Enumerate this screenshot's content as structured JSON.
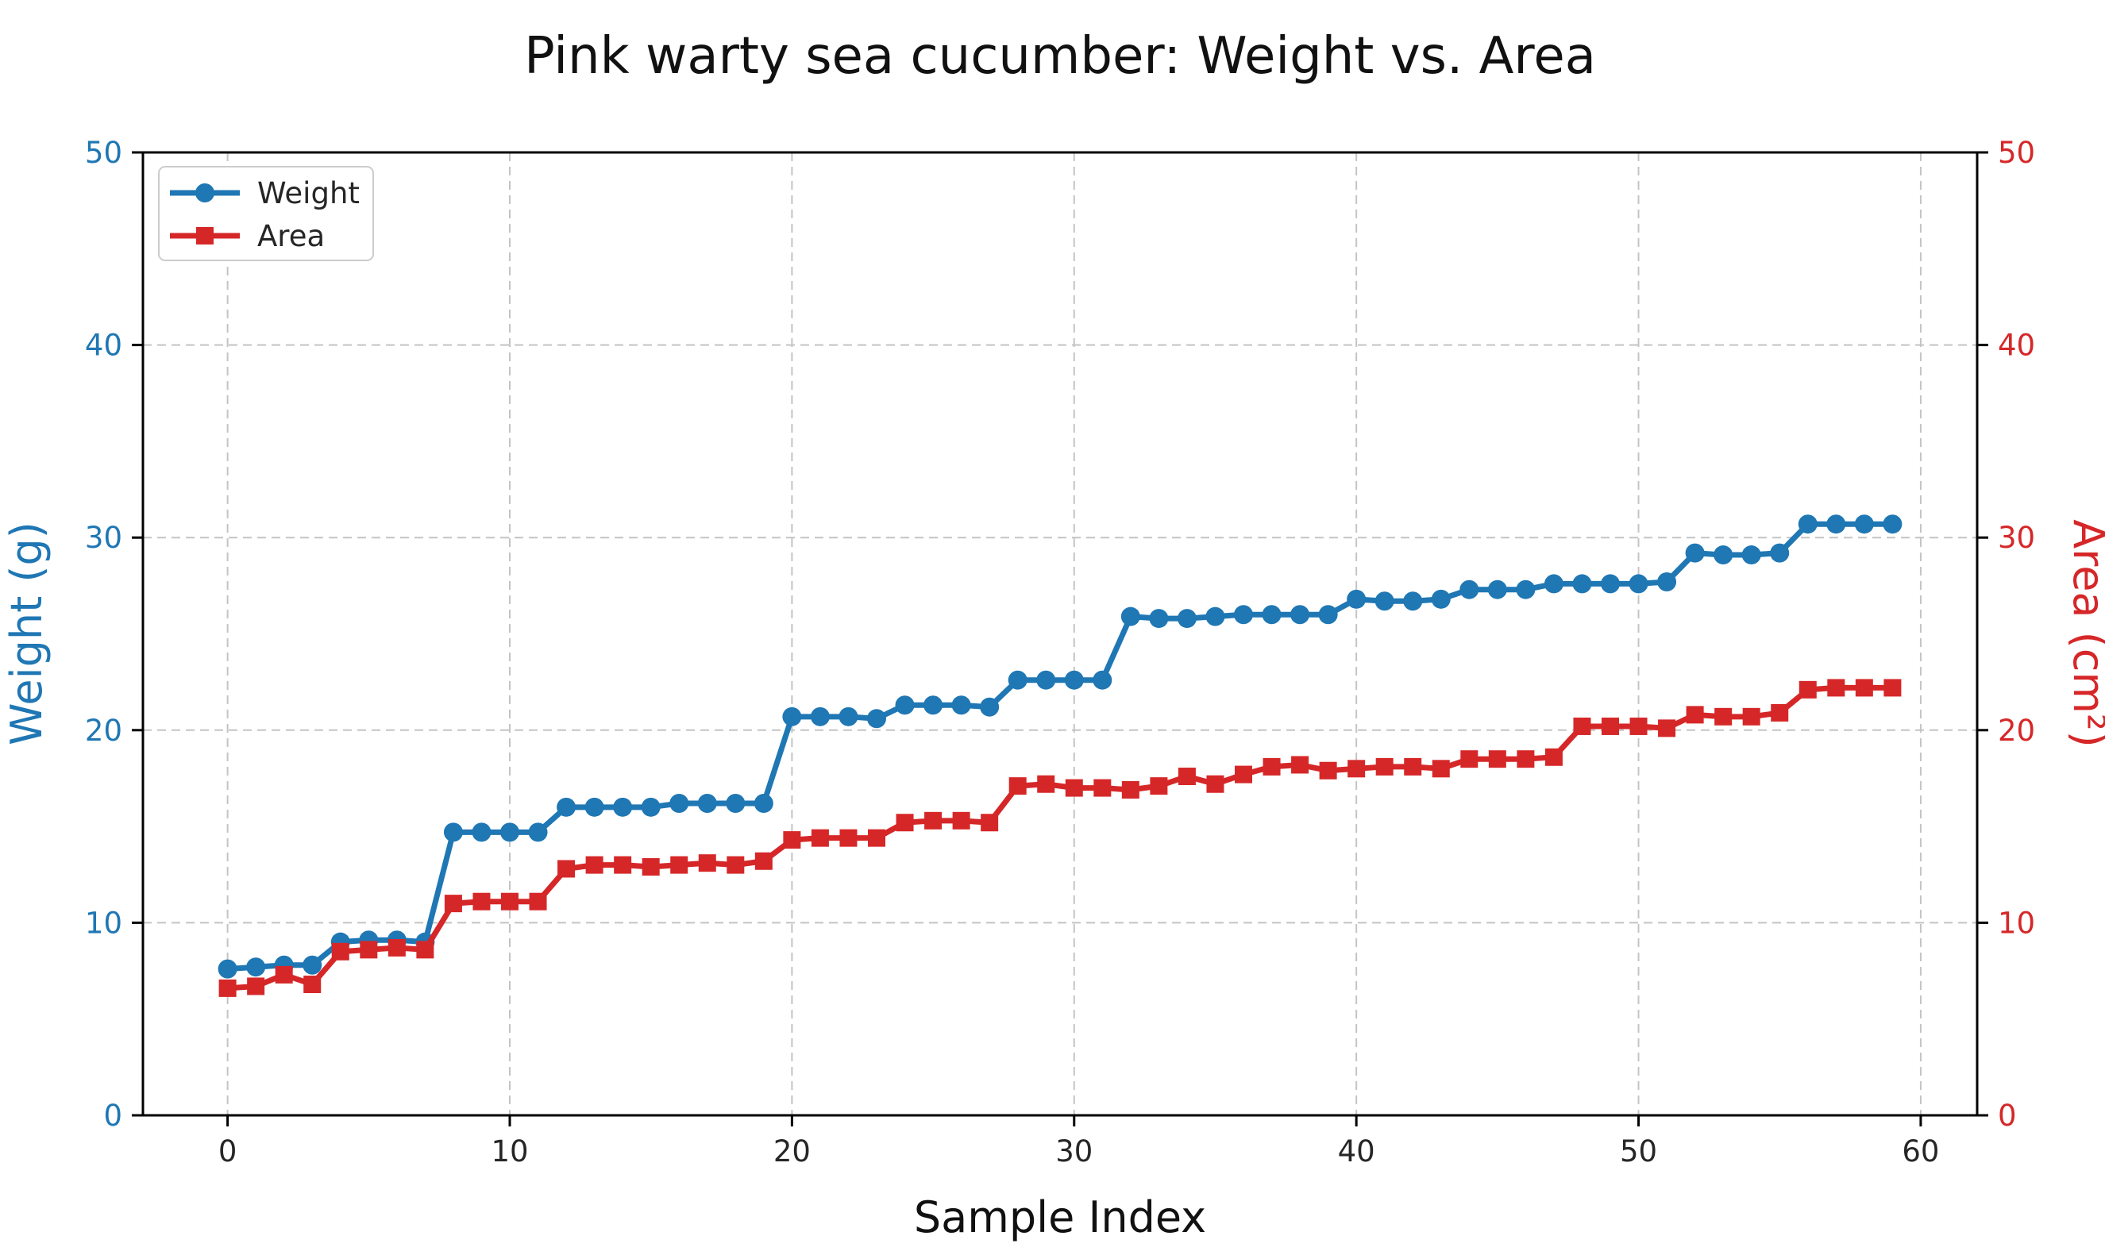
{
  "chart_data": {
    "type": "line",
    "title": "Pink warty sea cucumber: Weight vs. Area",
    "xlabel": "Sample Index",
    "ylabel_left": "Weight (g)",
    "ylabel_right": "Area (cm²)",
    "x": [
      0,
      1,
      2,
      3,
      4,
      5,
      6,
      7,
      8,
      9,
      10,
      11,
      12,
      13,
      14,
      15,
      16,
      17,
      18,
      19,
      20,
      21,
      22,
      23,
      24,
      25,
      26,
      27,
      28,
      29,
      30,
      31,
      32,
      33,
      34,
      35,
      36,
      37,
      38,
      39,
      40,
      41,
      42,
      43,
      44,
      45,
      46,
      47,
      48,
      49,
      50,
      51,
      52,
      53,
      54,
      55,
      56,
      57,
      58,
      59
    ],
    "series": [
      {
        "name": "Weight",
        "yaxis": "left",
        "color": "#1f77b4",
        "marker": "circle",
        "values": [
          7.6,
          7.7,
          7.8,
          7.8,
          9.0,
          9.1,
          9.1,
          9.0,
          14.7,
          14.7,
          14.7,
          14.7,
          16.0,
          16.0,
          16.0,
          16.0,
          16.2,
          16.2,
          16.2,
          16.2,
          20.7,
          20.7,
          20.7,
          20.6,
          21.3,
          21.3,
          21.3,
          21.2,
          22.6,
          22.6,
          22.6,
          22.6,
          25.9,
          25.8,
          25.8,
          25.9,
          26.0,
          26.0,
          26.0,
          26.0,
          26.8,
          26.7,
          26.7,
          26.8,
          27.3,
          27.3,
          27.3,
          27.6,
          27.6,
          27.6,
          27.6,
          27.7,
          29.2,
          29.1,
          29.1,
          29.2,
          30.7,
          30.7,
          30.7,
          30.7
        ]
      },
      {
        "name": "Area",
        "yaxis": "right",
        "color": "#d62728",
        "marker": "square",
        "values": [
          6.6,
          6.7,
          7.3,
          6.8,
          8.5,
          8.6,
          8.7,
          8.6,
          11.0,
          11.1,
          11.1,
          11.1,
          12.8,
          13.0,
          13.0,
          12.9,
          13.0,
          13.1,
          13.0,
          13.2,
          14.3,
          14.4,
          14.4,
          14.4,
          15.2,
          15.3,
          15.3,
          15.2,
          17.1,
          17.2,
          17.0,
          17.0,
          16.9,
          17.1,
          17.6,
          17.2,
          17.7,
          18.1,
          18.2,
          17.9,
          18.0,
          18.1,
          18.1,
          18.0,
          18.5,
          18.5,
          18.5,
          18.6,
          20.2,
          20.2,
          20.2,
          20.1,
          20.8,
          20.7,
          20.7,
          20.9,
          22.1,
          22.2,
          22.2,
          22.2
        ]
      }
    ],
    "xlim": [
      -3,
      62
    ],
    "ylim_left": [
      0,
      50
    ],
    "ylim_right": [
      0,
      50
    ],
    "xticks": [
      0,
      10,
      20,
      30,
      40,
      50,
      60
    ],
    "yticks_left": [
      0,
      10,
      20,
      30,
      40,
      50
    ],
    "yticks_right": [
      0,
      10,
      20,
      30,
      40,
      50
    ],
    "grid": true,
    "grid_style": "dashed",
    "legend": {
      "position": "upper-left",
      "entries": [
        "Weight",
        "Area"
      ]
    },
    "colors": {
      "grid": "#c4c4c4",
      "spine": "#000000",
      "title": "#111111",
      "xlabel": "#111111",
      "tick_label_bottom": "#262626",
      "tick_label_left": "#1f77b4",
      "tick_label_right": "#d62728",
      "legend_border": "#cccccc",
      "background": "#ffffff"
    }
  }
}
